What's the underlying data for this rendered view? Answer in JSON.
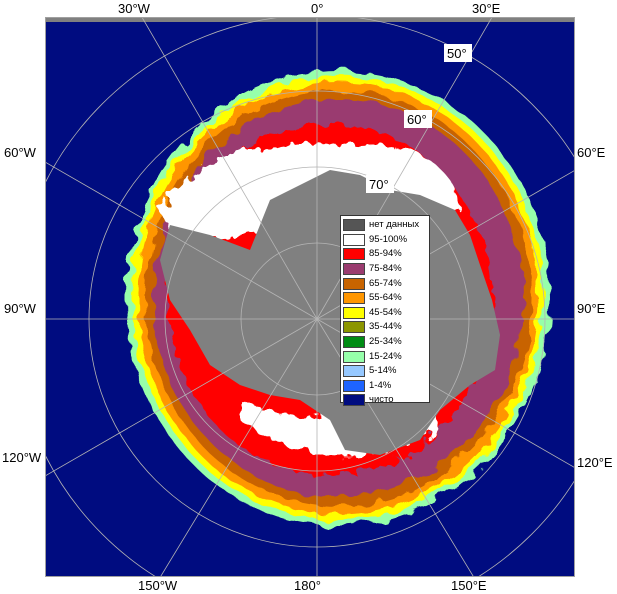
{
  "map": {
    "longitude_labels": {
      "lon_30w": "30°W",
      "lon_0": "0°",
      "lon_30e": "30°E",
      "lon_60w": "60°W",
      "lon_60e": "60°E",
      "lon_90w": "90°W",
      "lon_90e": "90°E",
      "lon_120w": "120°W",
      "lon_120e": "120°E",
      "lon_150w": "150°W",
      "lon_180": "180°",
      "lon_150e": "150°E"
    },
    "latitude_labels": {
      "lat_50": "50°",
      "lat_60": "60°",
      "lat_70": "70°"
    },
    "colors": {
      "ocean": "#000c80",
      "no_data": "#808080",
      "frame_gray": "#a0a0a0"
    }
  },
  "legend": {
    "items": [
      {
        "label": "нет данных",
        "color": "#555555"
      },
      {
        "label": "95-100%",
        "color": "#ffffff"
      },
      {
        "label": "85-94%",
        "color": "#ff0000"
      },
      {
        "label": "75-84%",
        "color": "#9a3b6f"
      },
      {
        "label": "65-74%",
        "color": "#c86400"
      },
      {
        "label": "55-64%",
        "color": "#ff9600"
      },
      {
        "label": "45-54%",
        "color": "#ffff00"
      },
      {
        "label": "35-44%",
        "color": "#8c9600"
      },
      {
        "label": "25-34%",
        "color": "#008c14"
      },
      {
        "label": "15-24%",
        "color": "#96ffaa"
      },
      {
        "label": "5-14%",
        "color": "#96c8ff"
      },
      {
        "label": "1-4%",
        "color": "#1e64ff"
      },
      {
        "label": "чисто",
        "color": "#000c80"
      }
    ]
  }
}
